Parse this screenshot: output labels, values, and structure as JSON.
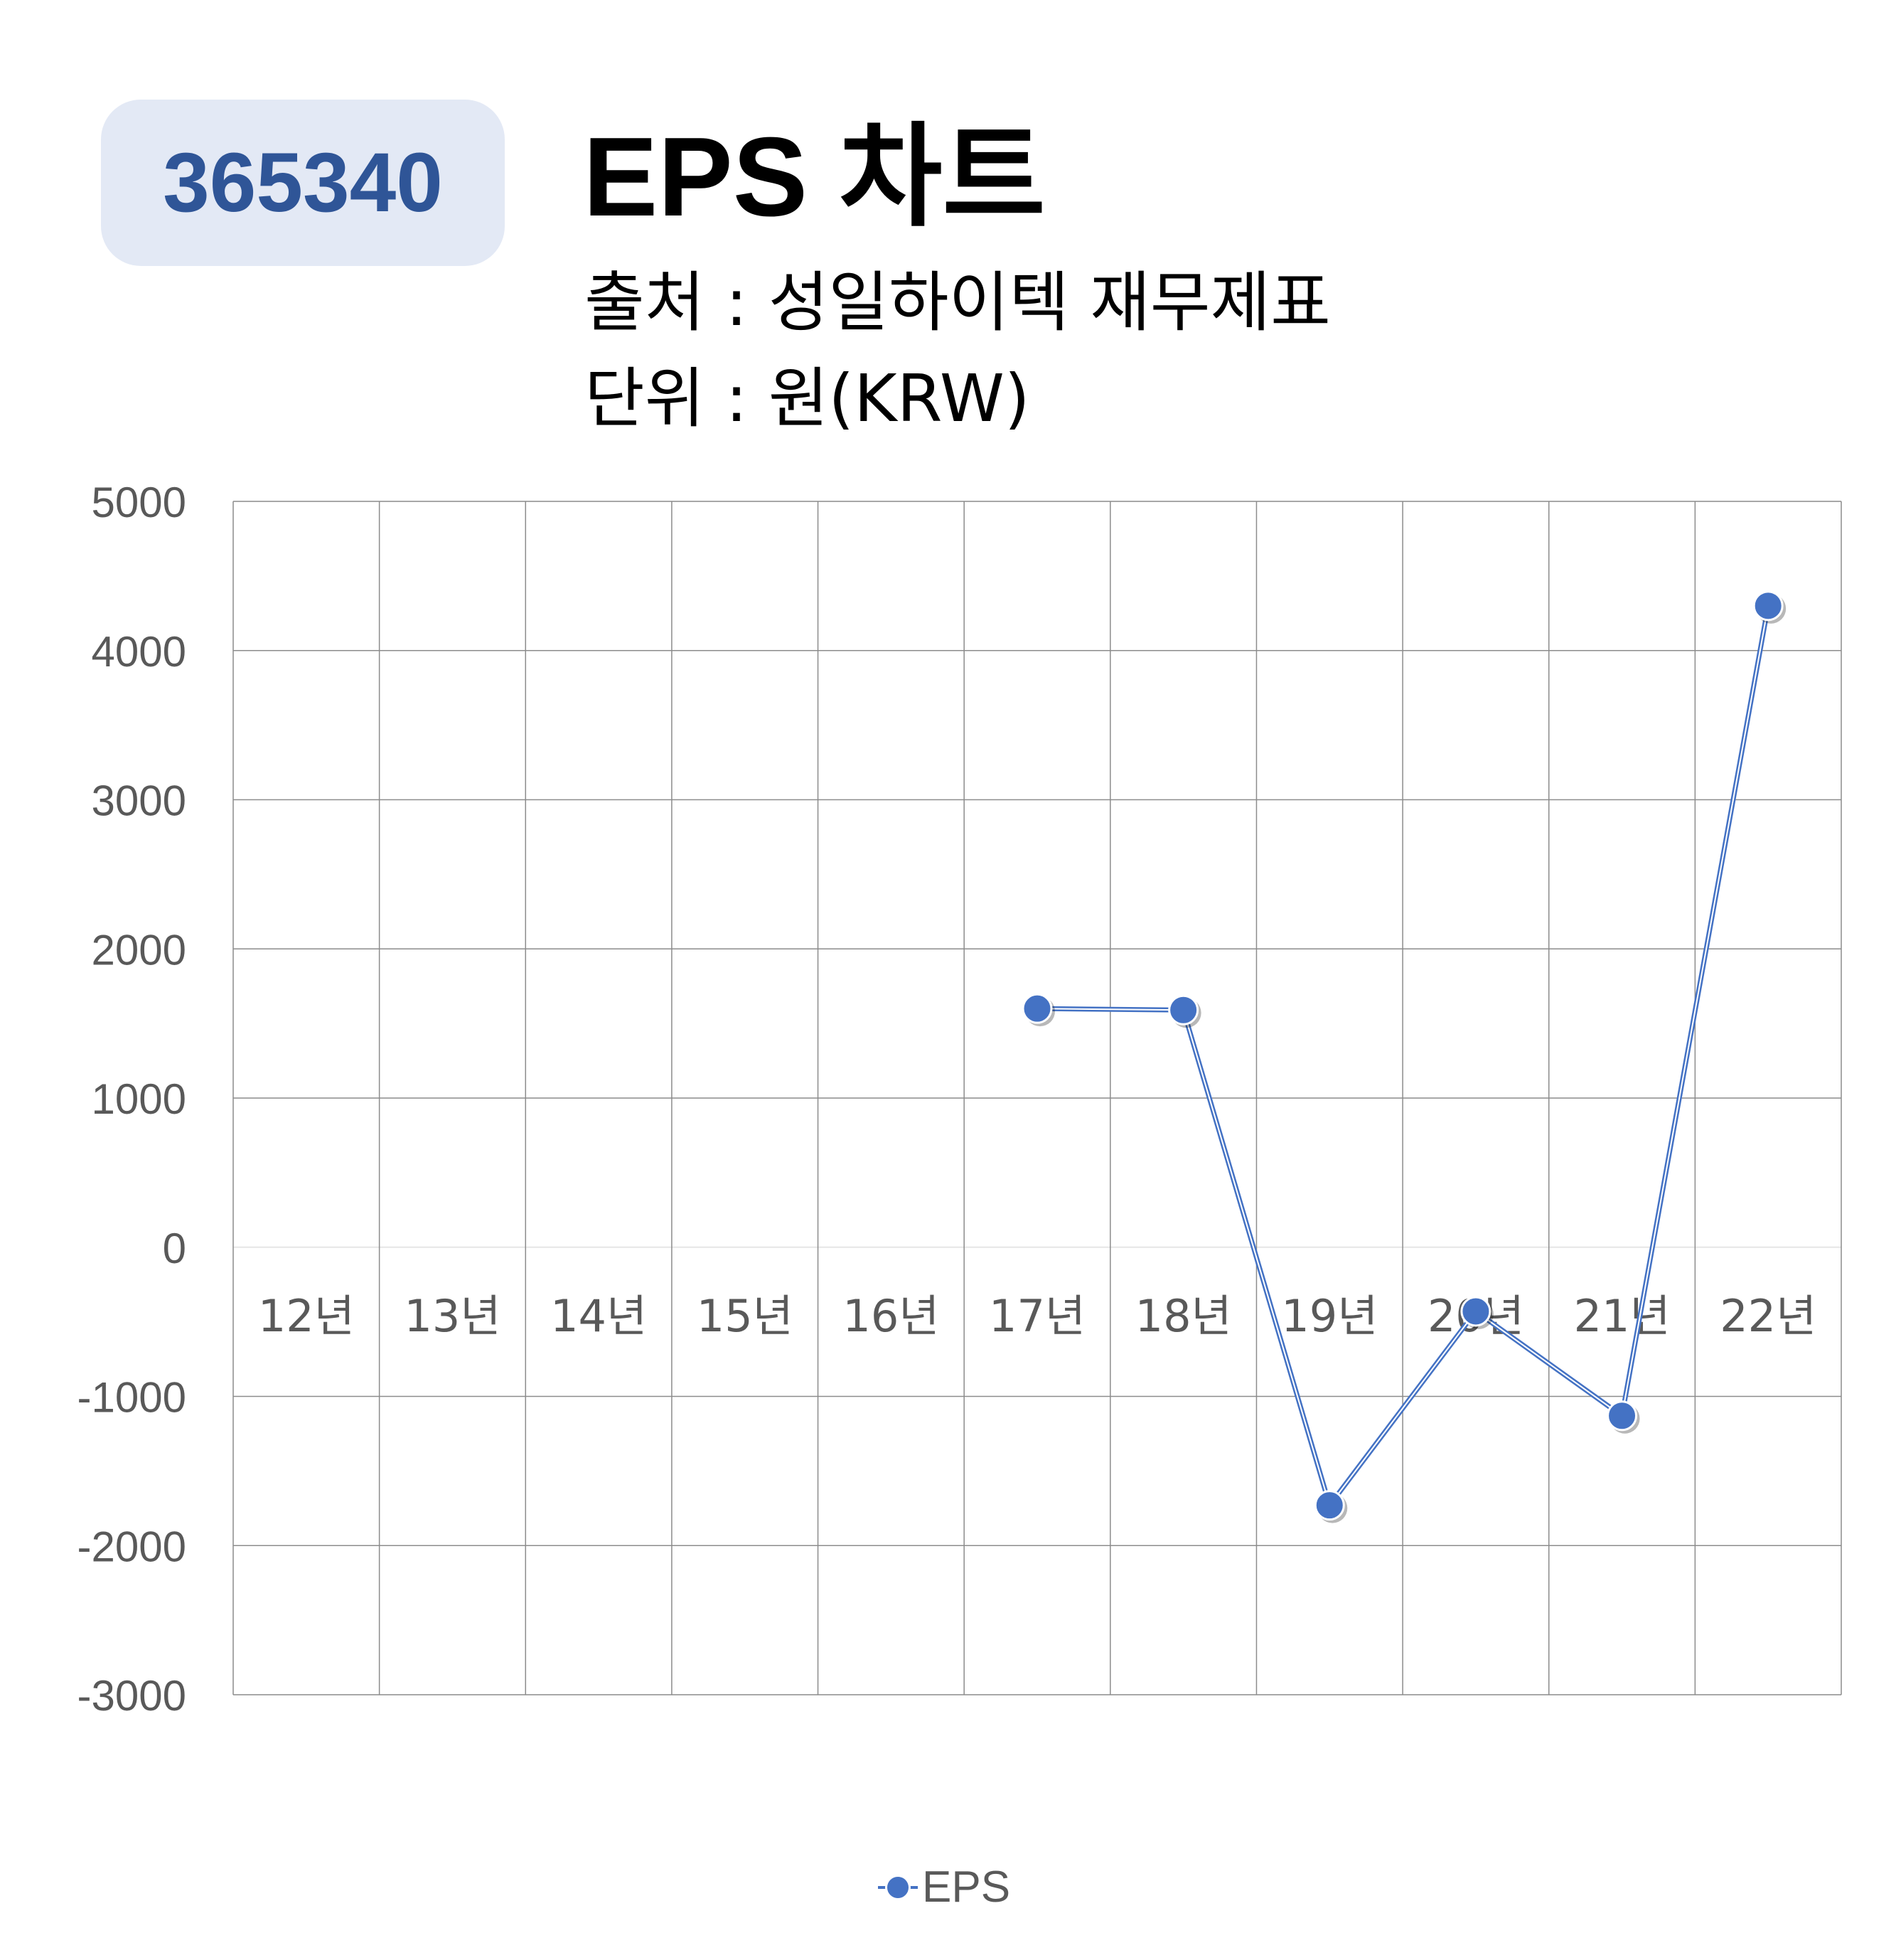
{
  "header": {
    "code": "365340",
    "title": "EPS 차트",
    "source": "출처 : 성일하이텍 재무제표",
    "unit": "단위 : 원(KRW)"
  },
  "chart_data": {
    "type": "line",
    "categories": [
      "12년",
      "13년",
      "14년",
      "15년",
      "16년",
      "17년",
      "18년",
      "19년",
      "20년",
      "21년",
      "22년"
    ],
    "series": [
      {
        "name": "EPS",
        "color": "#4472c4",
        "values": [
          null,
          null,
          null,
          null,
          null,
          1600,
          1590,
          -1730,
          -430,
          -1130,
          4300
        ]
      }
    ],
    "ylim": [
      -3000,
      5000
    ],
    "yticks": [
      5000,
      4000,
      3000,
      2000,
      1000,
      0,
      -1000,
      -2000,
      -3000
    ],
    "grid": true,
    "legend": "bottom"
  }
}
